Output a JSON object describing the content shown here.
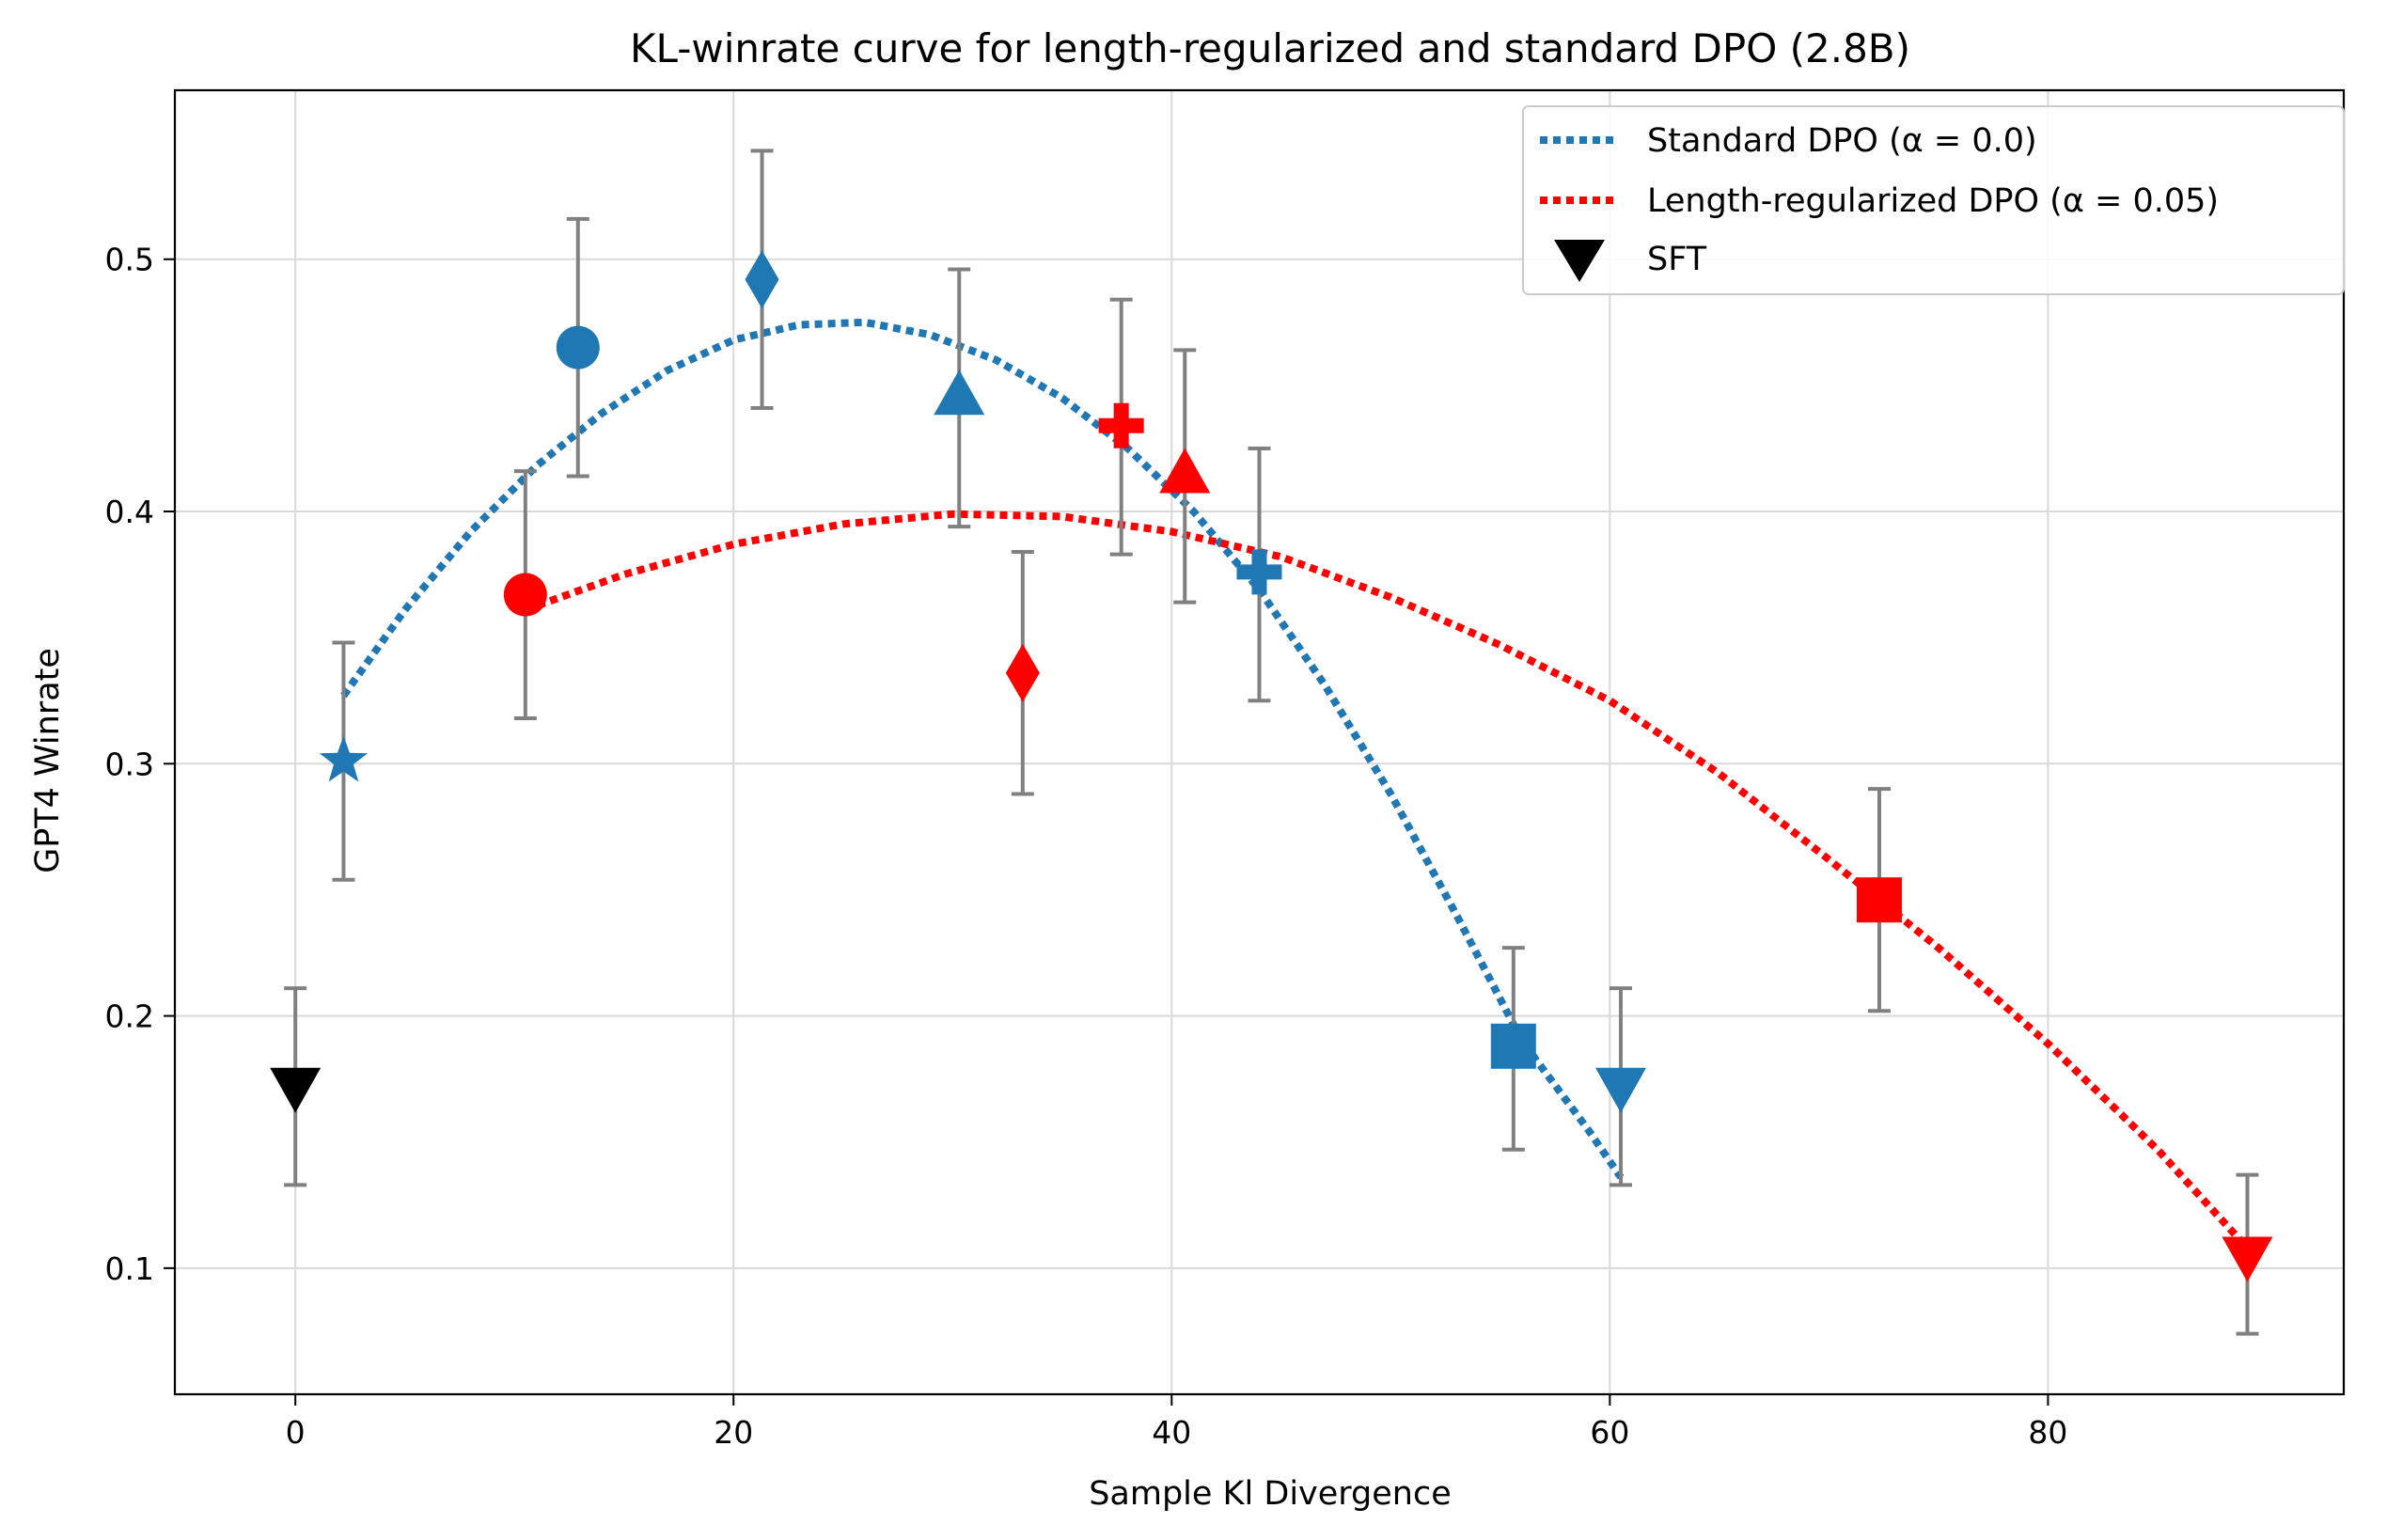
{
  "chart_data": {
    "type": "scatter",
    "title": "KL-winrate curve for length-regularized and standard DPO (2.8B)",
    "xlabel": "Sample Kl Divergence",
    "ylabel": "GPT4 Winrate",
    "xlim": [
      -5.5,
      93.5
    ],
    "ylim": [
      0.05,
      0.567
    ],
    "xticks": [
      0,
      20,
      40,
      60,
      80
    ],
    "yticks": [
      0.1,
      0.2,
      0.3,
      0.4,
      0.5
    ],
    "xtick_labels": [
      "0",
      "20",
      "40",
      "60",
      "80"
    ],
    "ytick_labels": [
      "0.1",
      "0.2",
      "0.3",
      "0.4",
      "0.5"
    ],
    "grid": true,
    "legend_position": "top-right",
    "legend": [
      {
        "label": "Standard DPO (α = 0.0)",
        "kind": "dotted-line",
        "color": "#1f77b4"
      },
      {
        "label": "Length-regularized DPO (α = 0.05)",
        "kind": "dotted-line",
        "color": "#ff0000"
      },
      {
        "label": "SFT",
        "kind": "marker",
        "marker": "triangle-down",
        "color": "#000000"
      }
    ],
    "error_bar_color": "#808080",
    "series": [
      {
        "name": "Standard DPO (α = 0.0)",
        "color": "#1f77b4",
        "points": [
          {
            "x": 2.2,
            "y": 0.301,
            "err_low": 0.254,
            "err_high": 0.348,
            "marker": "star"
          },
          {
            "x": 12.9,
            "y": 0.465,
            "err_low": 0.414,
            "err_high": 0.516,
            "marker": "circle"
          },
          {
            "x": 21.3,
            "y": 0.492,
            "err_low": 0.441,
            "err_high": 0.543,
            "marker": "diamond"
          },
          {
            "x": 30.3,
            "y": 0.445,
            "err_low": 0.394,
            "err_high": 0.496,
            "marker": "triangle-up"
          },
          {
            "x": 44.0,
            "y": 0.376,
            "err_low": 0.325,
            "err_high": 0.425,
            "marker": "plus"
          },
          {
            "x": 55.6,
            "y": 0.188,
            "err_low": 0.147,
            "err_high": 0.227,
            "marker": "square"
          },
          {
            "x": 60.5,
            "y": 0.172,
            "err_low": 0.133,
            "err_high": 0.211,
            "marker": "triangle-down"
          }
        ],
        "fit_curve": {
          "x": [
            2.2,
            5,
            8,
            11,
            14,
            17,
            20,
            23,
            26,
            29,
            32,
            35,
            38,
            41,
            44,
            47,
            50,
            53,
            56,
            59,
            60.5
          ],
          "y": [
            0.327,
            0.361,
            0.392,
            0.418,
            0.439,
            0.456,
            0.468,
            0.474,
            0.475,
            0.47,
            0.46,
            0.445,
            0.425,
            0.4,
            0.369,
            0.331,
            0.288,
            0.24,
            0.19,
            0.155,
            0.136
          ]
        }
      },
      {
        "name": "Length-regularized DPO (α = 0.05)",
        "color": "#ff0000",
        "points": [
          {
            "x": 10.5,
            "y": 0.367,
            "err_low": 0.318,
            "err_high": 0.416,
            "marker": "circle"
          },
          {
            "x": 33.2,
            "y": 0.336,
            "err_low": 0.288,
            "err_high": 0.384,
            "marker": "diamond"
          },
          {
            "x": 37.7,
            "y": 0.434,
            "err_low": 0.383,
            "err_high": 0.484,
            "marker": "plus"
          },
          {
            "x": 40.6,
            "y": 0.414,
            "err_low": 0.364,
            "err_high": 0.464,
            "marker": "triangle-up"
          },
          {
            "x": 72.3,
            "y": 0.246,
            "err_low": 0.202,
            "err_high": 0.29,
            "marker": "square"
          },
          {
            "x": 89.1,
            "y": 0.105,
            "err_low": 0.074,
            "err_high": 0.137,
            "marker": "triangle-down"
          }
        ],
        "fit_curve": {
          "x": [
            10.5,
            15,
            20,
            25,
            30,
            35,
            40,
            45,
            50,
            55,
            60,
            65,
            70,
            75,
            80,
            85,
            89.1
          ],
          "y": [
            0.361,
            0.375,
            0.387,
            0.395,
            0.399,
            0.398,
            0.392,
            0.382,
            0.366,
            0.347,
            0.325,
            0.296,
            0.262,
            0.227,
            0.189,
            0.147,
            0.108
          ]
        }
      },
      {
        "name": "SFT",
        "color": "#000000",
        "points": [
          {
            "x": 0.0,
            "y": 0.172,
            "err_low": 0.133,
            "err_high": 0.211,
            "marker": "triangle-down"
          }
        ]
      }
    ]
  }
}
